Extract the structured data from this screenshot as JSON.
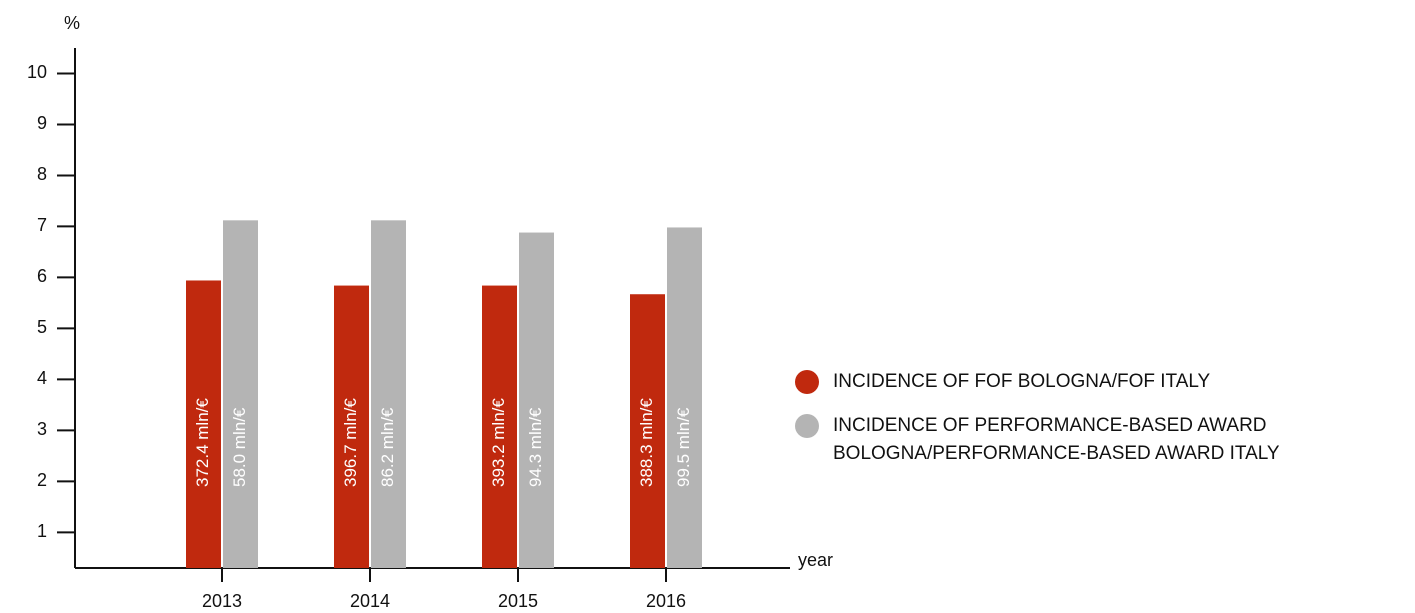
{
  "chart_data": {
    "type": "bar",
    "y_label": "%",
    "x_label": "year",
    "categories": [
      "2013",
      "2014",
      "2015",
      "2016"
    ],
    "series": [
      {
        "name": "INCIDENCE OF FOF BOLOGNA/FOF ITALY",
        "color": "#c0290e",
        "values": [
          5.94,
          5.84,
          5.84,
          5.67
        ],
        "bar_labels": [
          "372.4 mln/€",
          "396.7 mln/€",
          "393.2 mln/€",
          "388.3 mln/€"
        ]
      },
      {
        "name": "INCIDENCE OF PERFORMANCE-BASED AWARD BOLOGNA/PERFORMANCE-BASED AWARD ITALY",
        "color": "#b4b4b4",
        "values": [
          7.12,
          7.12,
          6.88,
          6.98
        ],
        "bar_labels": [
          "58.0 mln/€",
          "86.2 mln/€",
          "94.3 mln/€",
          "99.5 mln/€"
        ]
      }
    ],
    "ylim": [
      0.3,
      10.5
    ],
    "yticks": [
      1,
      2,
      3,
      4,
      5,
      6,
      7,
      8,
      9,
      10
    ],
    "legend": "right"
  }
}
